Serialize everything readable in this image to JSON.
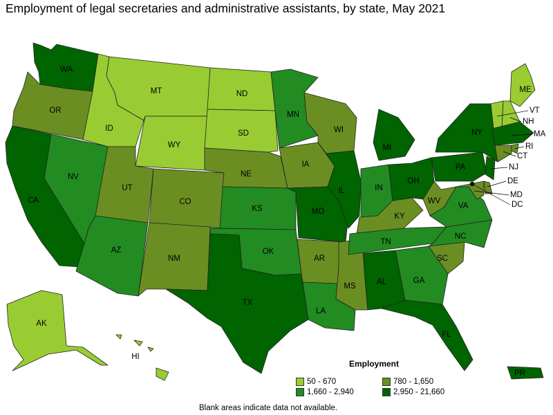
{
  "title": "Employment of legal secretaries and administrative assistants, by state, May 2021",
  "legend": {
    "title": "Employment",
    "items": [
      {
        "label": "50 - 670",
        "color": "#99cc33"
      },
      {
        "label": "780 - 1,650",
        "color": "#6b8e23"
      },
      {
        "label": "1,660 - 2,940",
        "color": "#228b22"
      },
      {
        "label": "2,950 - 21,660",
        "color": "#006400"
      }
    ]
  },
  "footnote": "Blank areas indicate data not available.",
  "chart_data": {
    "type": "choropleth",
    "title": "Employment of legal secretaries and administrative assistants, by state, May 2021",
    "legend_title": "Employment",
    "bins": [
      "50 - 670",
      "780 - 1,650",
      "1,660 - 2,940",
      "2,950 - 21,660"
    ],
    "states": [
      {
        "code": "WA",
        "bin": 3
      },
      {
        "code": "OR",
        "bin": 1
      },
      {
        "code": "CA",
        "bin": 3
      },
      {
        "code": "NV",
        "bin": 2
      },
      {
        "code": "ID",
        "bin": 0
      },
      {
        "code": "MT",
        "bin": 0
      },
      {
        "code": "WY",
        "bin": 0
      },
      {
        "code": "UT",
        "bin": 1
      },
      {
        "code": "AZ",
        "bin": 2
      },
      {
        "code": "CO",
        "bin": 1
      },
      {
        "code": "NM",
        "bin": 1
      },
      {
        "code": "ND",
        "bin": 0
      },
      {
        "code": "SD",
        "bin": 0
      },
      {
        "code": "NE",
        "bin": 1
      },
      {
        "code": "KS",
        "bin": 2
      },
      {
        "code": "OK",
        "bin": 2
      },
      {
        "code": "TX",
        "bin": 3
      },
      {
        "code": "MN",
        "bin": 2
      },
      {
        "code": "IA",
        "bin": 1
      },
      {
        "code": "MO",
        "bin": 3
      },
      {
        "code": "AR",
        "bin": 1
      },
      {
        "code": "LA",
        "bin": 2
      },
      {
        "code": "WI",
        "bin": 1
      },
      {
        "code": "IL",
        "bin": 3
      },
      {
        "code": "MS",
        "bin": 1
      },
      {
        "code": "MI",
        "bin": 3
      },
      {
        "code": "IN",
        "bin": 2
      },
      {
        "code": "KY",
        "bin": 1
      },
      {
        "code": "TN",
        "bin": 2
      },
      {
        "code": "AL",
        "bin": 3
      },
      {
        "code": "OH",
        "bin": 3
      },
      {
        "code": "WV",
        "bin": 1
      },
      {
        "code": "GA",
        "bin": 2
      },
      {
        "code": "FL",
        "bin": 3
      },
      {
        "code": "SC",
        "bin": 1
      },
      {
        "code": "NC",
        "bin": 2
      },
      {
        "code": "VA",
        "bin": 2
      },
      {
        "code": "PA",
        "bin": 3
      },
      {
        "code": "NY",
        "bin": 3
      },
      {
        "code": "ME",
        "bin": 0
      },
      {
        "code": "VT",
        "bin": 0
      },
      {
        "code": "NH",
        "bin": 0
      },
      {
        "code": "MA",
        "bin": 3
      },
      {
        "code": "RI",
        "bin": 1
      },
      {
        "code": "CT",
        "bin": 1
      },
      {
        "code": "NJ",
        "bin": 3
      },
      {
        "code": "DE",
        "bin": 1
      },
      {
        "code": "MD",
        "bin": 1
      },
      {
        "code": "DC",
        "bin": 3
      },
      {
        "code": "AK",
        "bin": 0
      },
      {
        "code": "HI",
        "bin": 0
      },
      {
        "code": "PR",
        "bin": 3
      }
    ]
  }
}
